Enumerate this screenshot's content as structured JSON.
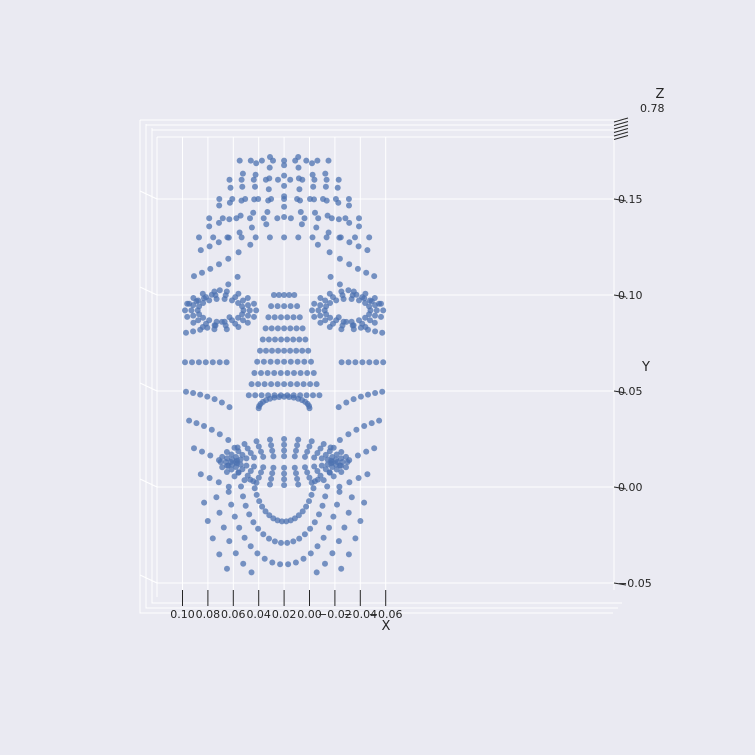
{
  "chart_data": {
    "type": "scatter",
    "projection": "3d",
    "title": "",
    "subject": "3D face mesh landmarks viewed from the front",
    "xlabel": "X",
    "ylabel": "Y",
    "zlabel": "Z",
    "xlim": [
      0.11,
      -0.07
    ],
    "ylim": [
      -0.055,
      0.175
    ],
    "x_ticks": [
      "0.10",
      "0.08",
      "0.06",
      "0.04",
      "0.02",
      "0.00",
      "−0.02",
      "−0.04",
      "−0.06"
    ],
    "x_tick_values": [
      0.1,
      0.08,
      0.06,
      0.04,
      0.02,
      0.0,
      -0.02,
      -0.04,
      -0.06
    ],
    "y_ticks": [
      "0.15",
      "0.10",
      "0.05",
      "0.00",
      "−0.05"
    ],
    "y_tick_values": [
      0.15,
      0.1,
      0.05,
      0.0,
      -0.05
    ],
    "z_tick_partial": "0.78",
    "series": [
      {
        "name": "face landmarks",
        "color": "#4c72b0",
        "opacity": 0.75,
        "groups": {
          "forehead_and_cheeks": {
            "shape": "dome-grid",
            "x_range": [
              0.098,
              -0.058
            ],
            "y_range": [
              0.0,
              0.172
            ],
            "rows": 14
          },
          "left_eye": {
            "shape": "ring",
            "center": [
              0.07,
              0.092
            ],
            "radius_x": 0.028,
            "radius_y": 0.01
          },
          "right_eye": {
            "shape": "ring",
            "center": [
              -0.03,
              0.092
            ],
            "radius_x": 0.028,
            "radius_y": 0.01
          },
          "nose": {
            "shape": "wedge",
            "top": [
              0.02,
              0.1
            ],
            "base_y": 0.045,
            "half_width": 0.027
          },
          "nostrils": {
            "shape": "arc",
            "center": [
              0.02,
              0.041
            ],
            "radius_x": 0.02,
            "radius_y": 0.006
          },
          "mouth": {
            "shape": "lip-rings",
            "center": [
              0.02,
              0.013
            ],
            "half_width": 0.05,
            "half_height": 0.012
          },
          "chin": {
            "shape": "radial-fan",
            "center": [
              0.02,
              0.01
            ],
            "y_bottom": -0.045,
            "spokes": 20
          }
        }
      }
    ]
  }
}
